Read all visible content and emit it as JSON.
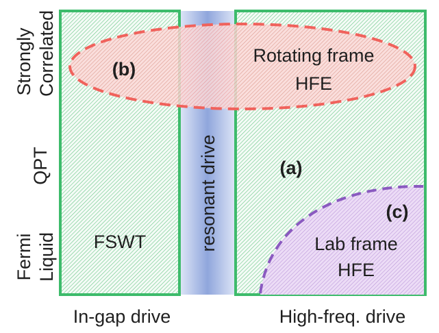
{
  "y_axis_labels": {
    "strongly_correlated_line1": "Strongly",
    "strongly_correlated_line2": "Correlated",
    "qpt": "QPT",
    "fermi_liquid_line1": "Fermi",
    "fermi_liquid_line2": "Liquid"
  },
  "x_axis_labels": {
    "in_gap": "In-gap drive",
    "high_freq": "High-freq. drive"
  },
  "regions": {
    "resonant_band_label": "resonant drive",
    "left_box_label": "FSWT",
    "rotating_frame_line1": "Rotating frame",
    "rotating_frame_line2": "HFE",
    "lab_frame_line1": "Lab frame",
    "lab_frame_line2": "HFE"
  },
  "markers": {
    "a": "(a)",
    "b": "(b)",
    "c": "(c)"
  },
  "colors": {
    "box_border": "#3dbb6b",
    "box_hatch": "#5ec27d",
    "band": "#8fa6dc",
    "ellipse_dash": "#f0625c",
    "ellipse_fill": "#f7a3a0",
    "lab_dash": "#8a5ac0",
    "lab_fill": "#c9a7e2",
    "text": "#1f1f1f"
  }
}
